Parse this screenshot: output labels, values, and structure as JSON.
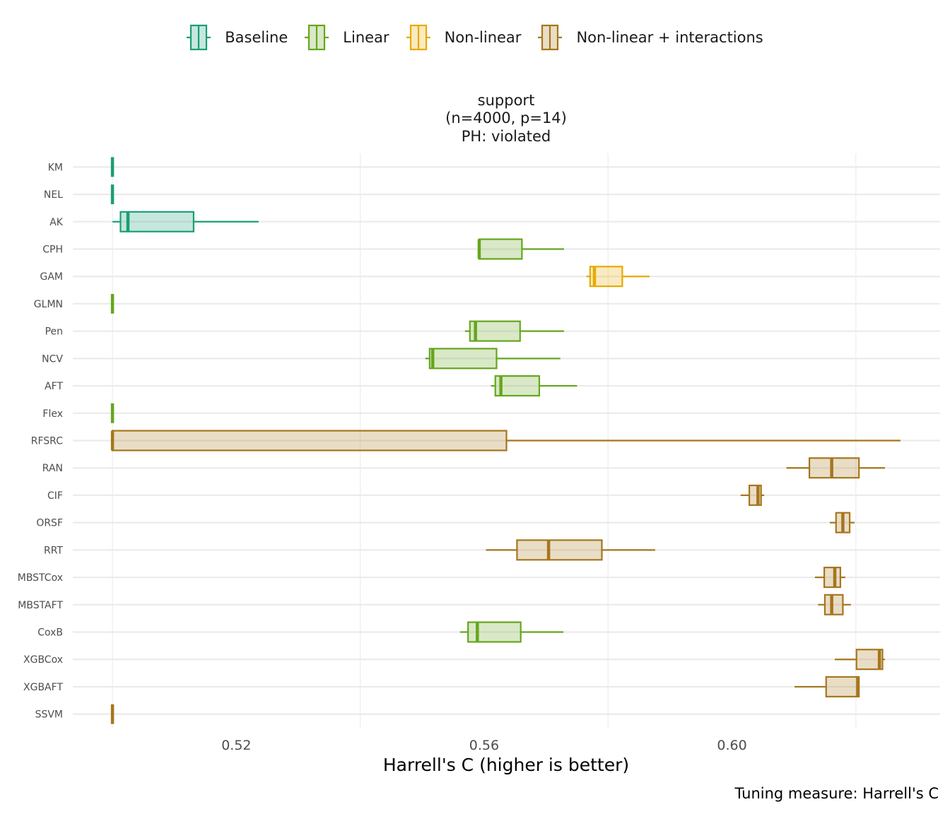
{
  "chart_data": {
    "type": "boxplot",
    "orientation": "horizontal",
    "title_lines": [
      "support",
      "(n=4000, p=14)",
      "PH: violated"
    ],
    "xlabel": "Harrell's C (higher is better)",
    "ylabel": "",
    "caption": "Tuning measure: Harrell's C",
    "xlim": [
      0.4936,
      0.6336
    ],
    "x_ticks": [
      {
        "value": 0.52,
        "label": "0.52"
      },
      {
        "value": 0.56,
        "label": "0.56"
      },
      {
        "value": 0.6,
        "label": "0.60"
      }
    ],
    "x_gridlines": [
      0.5,
      0.54,
      0.58,
      0.62
    ],
    "grid": true,
    "legend_position": "top",
    "legend": [
      {
        "key": "baseline",
        "label": "Baseline",
        "color": "#1b9e77"
      },
      {
        "key": "linear",
        "label": "Linear",
        "color": "#66a61e"
      },
      {
        "key": "nonlinear",
        "label": "Non-linear",
        "color": "#e6ab02"
      },
      {
        "key": "nonlinear_int",
        "label": "Non-linear + interactions",
        "color": "#a6761d"
      }
    ],
    "categories": [
      "KM",
      "NEL",
      "AK",
      "CPH",
      "GAM",
      "GLMN",
      "Pen",
      "NCV",
      "AFT",
      "Flex",
      "RFSRC",
      "RAN",
      "CIF",
      "ORSF",
      "RRT",
      "MBSTCox",
      "MBSTAFT",
      "CoxB",
      "XGBCox",
      "XGBAFT",
      "SSVM"
    ],
    "series": [
      {
        "name": "KM",
        "group": "baseline",
        "whisker_low": 0.5,
        "q1": 0.5,
        "median": 0.5,
        "q3": 0.5,
        "whisker_high": 0.5
      },
      {
        "name": "NEL",
        "group": "baseline",
        "whisker_low": 0.5,
        "q1": 0.5,
        "median": 0.5,
        "q3": 0.5,
        "whisker_high": 0.5
      },
      {
        "name": "AK",
        "group": "baseline",
        "whisker_low": 0.5,
        "q1": 0.5013,
        "median": 0.5025,
        "q3": 0.5131,
        "whisker_high": 0.5236
      },
      {
        "name": "CPH",
        "group": "linear",
        "whisker_low": 0.5592,
        "q1": 0.5592,
        "median": 0.5592,
        "q3": 0.5661,
        "whisker_high": 0.5729
      },
      {
        "name": "GAM",
        "group": "nonlinear",
        "whisker_low": 0.5765,
        "q1": 0.5771,
        "median": 0.5778,
        "q3": 0.5823,
        "whisker_high": 0.5867
      },
      {
        "name": "GLMN",
        "group": "linear",
        "whisker_low": 0.5,
        "q1": 0.5,
        "median": 0.5,
        "q3": 0.5,
        "whisker_high": 0.5
      },
      {
        "name": "Pen",
        "group": "linear",
        "whisker_low": 0.5569,
        "q1": 0.5577,
        "median": 0.5586,
        "q3": 0.5658,
        "whisker_high": 0.5729
      },
      {
        "name": "NCV",
        "group": "linear",
        "whisker_low": 0.5505,
        "q1": 0.5512,
        "median": 0.5517,
        "q3": 0.562,
        "whisker_high": 0.5723
      },
      {
        "name": "AFT",
        "group": "linear",
        "whisker_low": 0.5611,
        "q1": 0.5618,
        "median": 0.5627,
        "q3": 0.5689,
        "whisker_high": 0.575
      },
      {
        "name": "Flex",
        "group": "linear",
        "whisker_low": 0.5,
        "q1": 0.5,
        "median": 0.5,
        "q3": 0.5,
        "whisker_high": 0.5
      },
      {
        "name": "RFSRC",
        "group": "nonlinear_int",
        "whisker_low": 0.5,
        "q1": 0.5,
        "median": 0.5,
        "q3": 0.5636,
        "whisker_high": 0.6272
      },
      {
        "name": "RAN",
        "group": "nonlinear_int",
        "whisker_low": 0.6088,
        "q1": 0.6125,
        "median": 0.6161,
        "q3": 0.6205,
        "whisker_high": 0.6247
      },
      {
        "name": "CIF",
        "group": "nonlinear_int",
        "whisker_low": 0.6014,
        "q1": 0.6028,
        "median": 0.6042,
        "q3": 0.6047,
        "whisker_high": 0.6052
      },
      {
        "name": "ORSF",
        "group": "nonlinear_int",
        "whisker_low": 0.6158,
        "q1": 0.6168,
        "median": 0.6179,
        "q3": 0.619,
        "whisker_high": 0.6198
      },
      {
        "name": "RRT",
        "group": "nonlinear_int",
        "whisker_low": 0.5603,
        "q1": 0.5653,
        "median": 0.5704,
        "q3": 0.579,
        "whisker_high": 0.5876
      },
      {
        "name": "MBSTCox",
        "group": "nonlinear_int",
        "whisker_low": 0.6134,
        "q1": 0.6149,
        "median": 0.6166,
        "q3": 0.6175,
        "whisker_high": 0.6183
      },
      {
        "name": "MBSTAFT",
        "group": "nonlinear_int",
        "whisker_low": 0.6139,
        "q1": 0.615,
        "median": 0.6161,
        "q3": 0.6179,
        "whisker_high": 0.6192
      },
      {
        "name": "CoxB",
        "group": "linear",
        "whisker_low": 0.5561,
        "q1": 0.5574,
        "median": 0.5589,
        "q3": 0.5659,
        "whisker_high": 0.5728
      },
      {
        "name": "XGBCox",
        "group": "nonlinear_int",
        "whisker_low": 0.6166,
        "q1": 0.6201,
        "median": 0.6238,
        "q3": 0.6243,
        "whisker_high": 0.6247
      },
      {
        "name": "XGBAFT",
        "group": "nonlinear_int",
        "whisker_low": 0.6101,
        "q1": 0.6152,
        "median": 0.6203,
        "q3": 0.6205,
        "whisker_high": 0.6205
      },
      {
        "name": "SSVM",
        "group": "nonlinear_int",
        "whisker_low": 0.5,
        "q1": 0.5,
        "median": 0.5,
        "q3": 0.5,
        "whisker_high": 0.5
      }
    ]
  }
}
